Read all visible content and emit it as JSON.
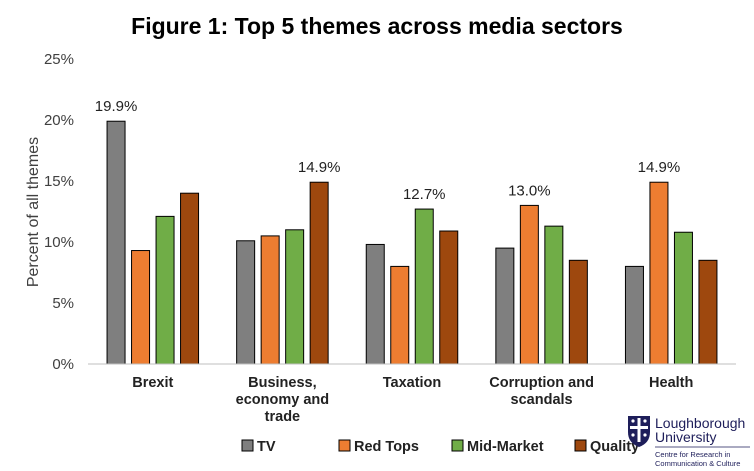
{
  "chart_data": {
    "type": "bar",
    "title": "Figure 1: Top 5 themes across media sectors",
    "ylabel": "Percent of all themes",
    "xlabel": "",
    "ylim": [
      0,
      25
    ],
    "yticks": [
      "0%",
      "5%",
      "10%",
      "15%",
      "20%",
      "25%"
    ],
    "grid": false,
    "legend_position": "bottom",
    "categories": [
      [
        "Brexit"
      ],
      [
        "Business,",
        "economy and",
        "trade"
      ],
      [
        "Taxation"
      ],
      [
        "Corruption and",
        "scandals"
      ],
      [
        "Health"
      ]
    ],
    "series": [
      {
        "name": "TV",
        "color": "#7f7f7f",
        "values": [
          19.9,
          10.1,
          9.8,
          9.5,
          8.0
        ]
      },
      {
        "name": "Red Tops",
        "color": "#ed7d31",
        "values": [
          9.3,
          10.5,
          8.0,
          13.0,
          14.9
        ]
      },
      {
        "name": "Mid-Market",
        "color": "#70ad47",
        "values": [
          12.1,
          11.0,
          12.7,
          11.3,
          10.8
        ]
      },
      {
        "name": "Quality",
        "color": "#9e480e",
        "values": [
          14.0,
          14.9,
          10.9,
          8.5,
          8.5
        ]
      }
    ],
    "data_labels": [
      {
        "category": 0,
        "series": 0,
        "text": "19.9%"
      },
      {
        "category": 1,
        "series": 3,
        "text": "14.9%"
      },
      {
        "category": 2,
        "series": 2,
        "text": "12.7%"
      },
      {
        "category": 3,
        "series": 1,
        "text": "13.0%"
      },
      {
        "category": 4,
        "series": 1,
        "text": "14.9%"
      }
    ]
  },
  "logo": {
    "line1": "Loughborough",
    "line2": "University",
    "sub1": "Centre for Research in",
    "sub2": "Communication & Culture",
    "color": "#1e1e5a"
  }
}
